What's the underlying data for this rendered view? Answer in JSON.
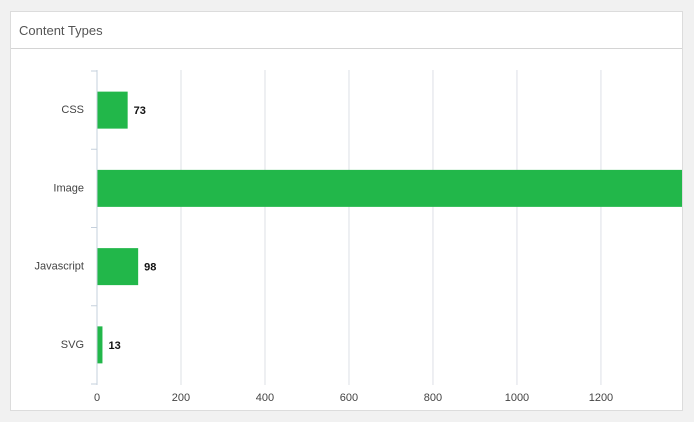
{
  "chart_data": {
    "type": "bar",
    "title": "Content Types",
    "categories": [
      "CSS",
      "Image",
      "Javascript",
      "SVG"
    ],
    "values": [
      73,
      1420,
      98,
      13
    ],
    "color": "#22b74a",
    "xlim": [
      0,
      1393
    ],
    "xticks": [
      0,
      200,
      400,
      600,
      800,
      1000,
      1200
    ],
    "grid": true
  }
}
